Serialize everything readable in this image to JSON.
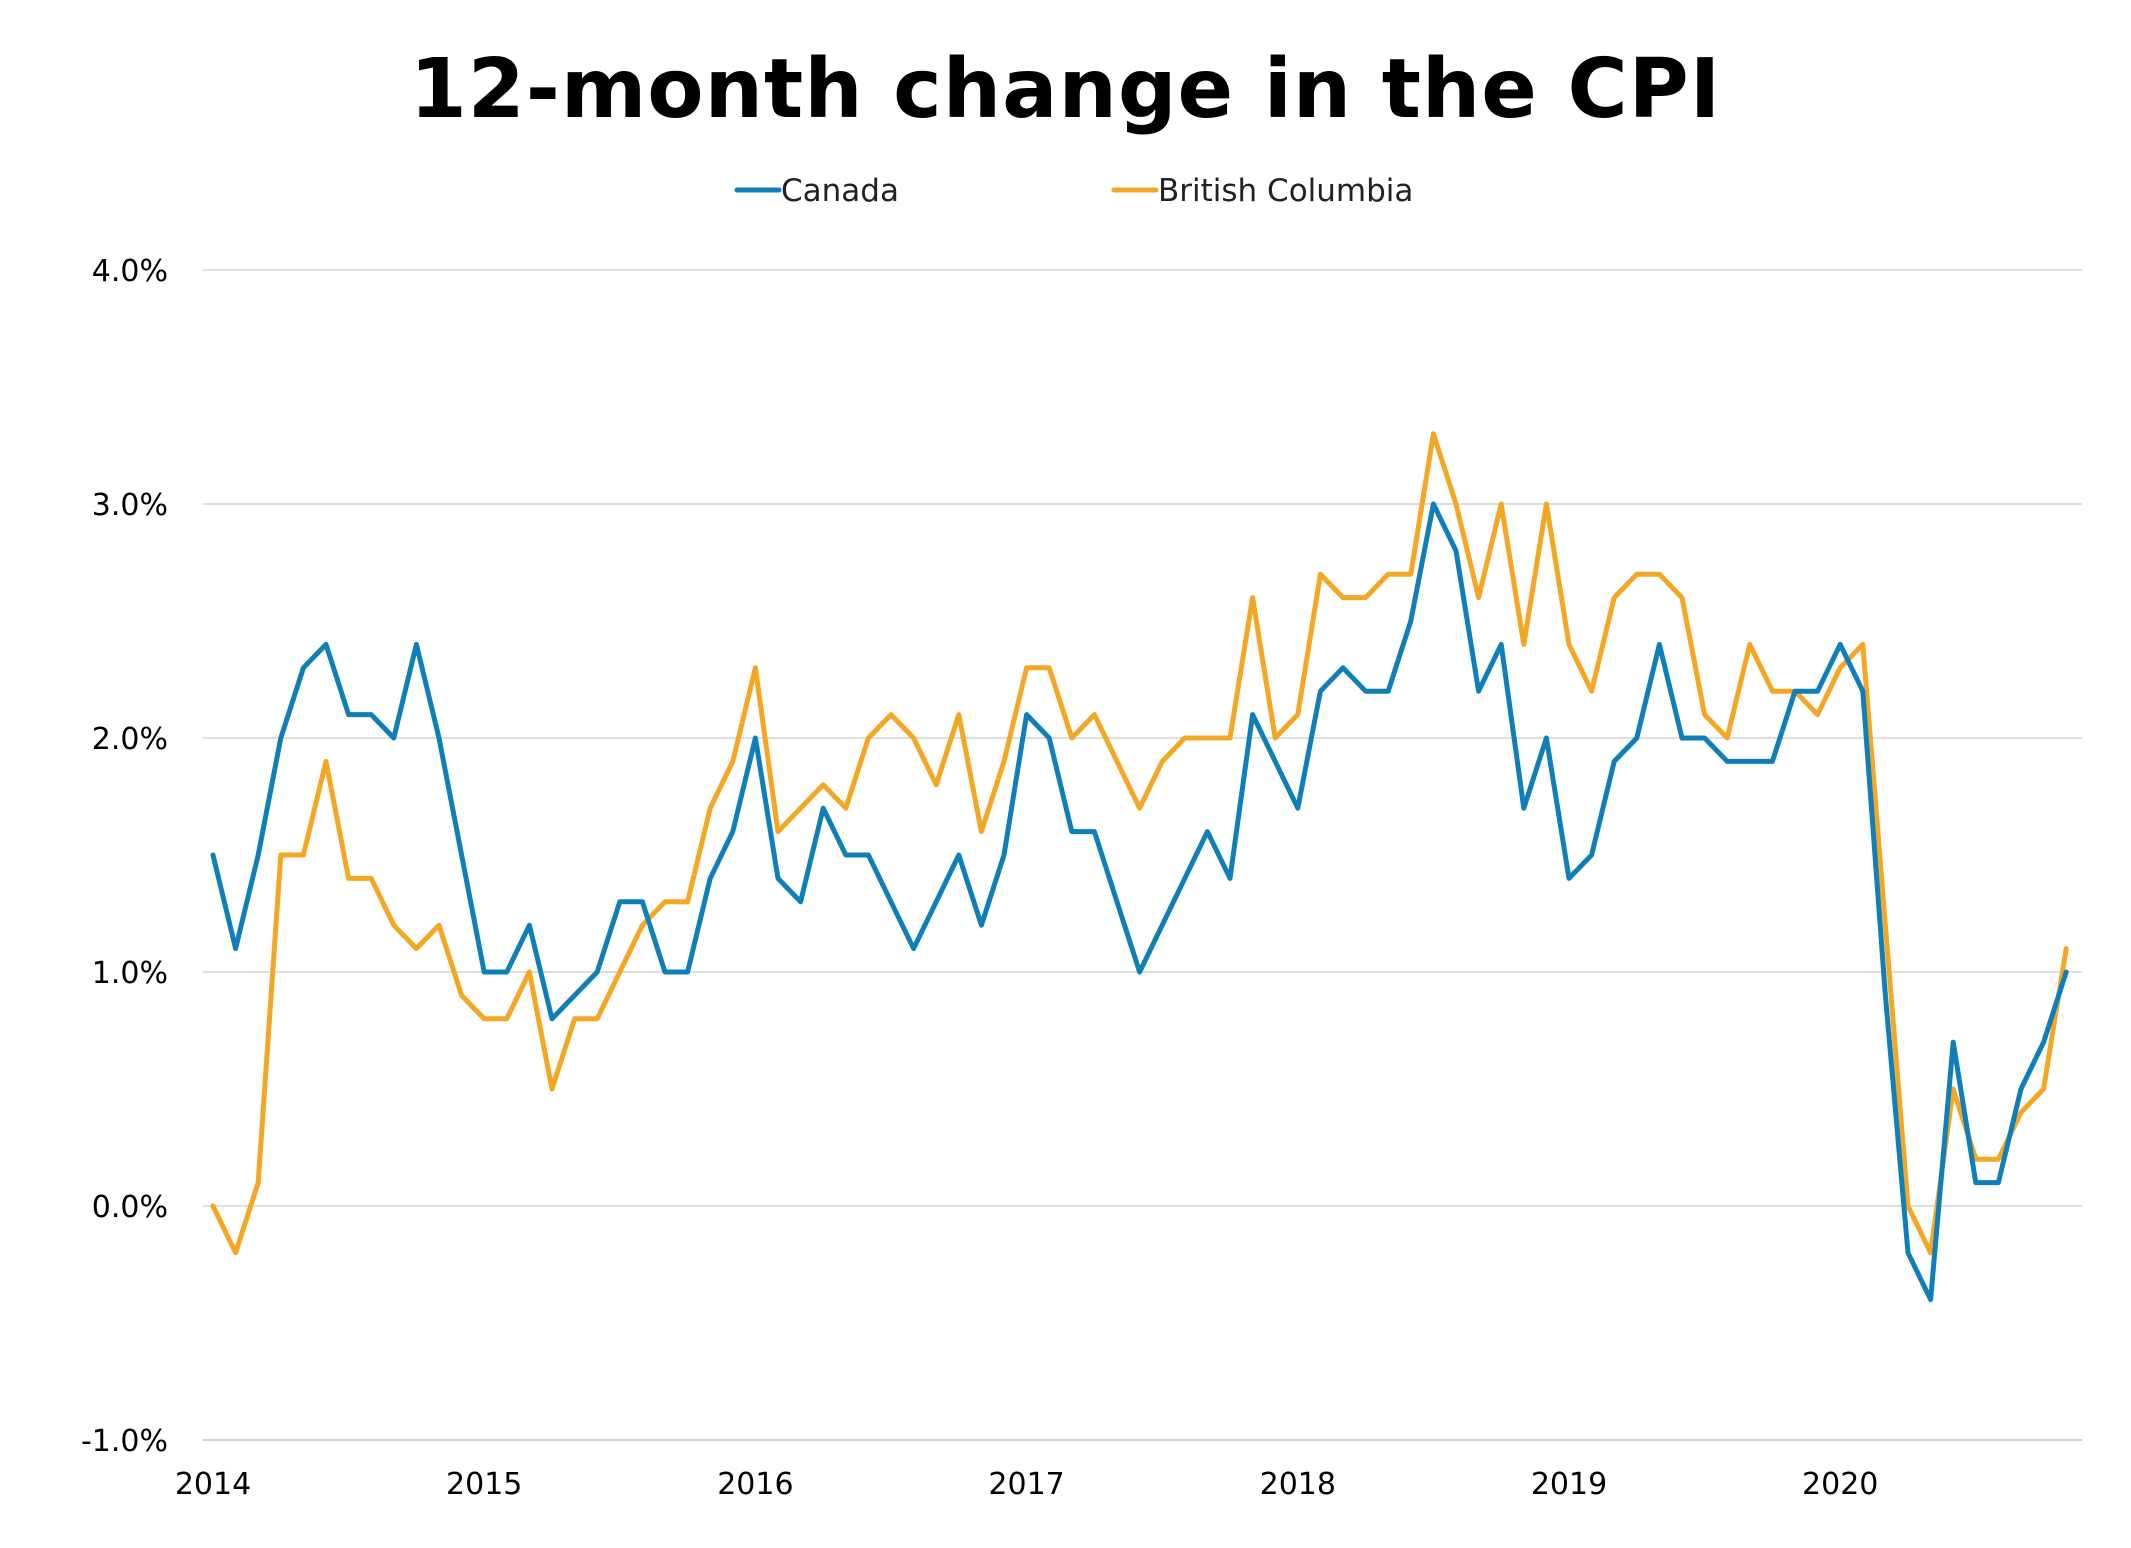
{
  "chart_data": {
    "type": "line",
    "title": "12-month change in the CPI",
    "xlabel": "",
    "ylabel": "",
    "ylim": [
      -1.0,
      4.0
    ],
    "yticks": [
      "4.0%",
      "3.0%",
      "2.0%",
      "1.0%",
      "0.0%",
      "-1.0%"
    ],
    "ytick_values": [
      4.0,
      3.0,
      2.0,
      1.0,
      0.0,
      -1.0
    ],
    "xticks": [
      "2014",
      "2015",
      "2016",
      "2017",
      "2018",
      "2019",
      "2020"
    ],
    "x_start": "2014-01",
    "x_end": "2020-10",
    "grid": "horizontal",
    "legend_position": "top-center",
    "series": [
      {
        "name": "Canada",
        "color": "#0e7fb8",
        "values": [
          1.5,
          1.1,
          1.5,
          2.0,
          2.3,
          2.4,
          2.1,
          2.1,
          2.0,
          2.4,
          2.0,
          1.5,
          1.0,
          1.0,
          1.2,
          0.8,
          0.9,
          1.0,
          1.3,
          1.3,
          1.0,
          1.0,
          1.4,
          1.6,
          2.0,
          1.4,
          1.3,
          1.7,
          1.5,
          1.5,
          1.3,
          1.1,
          1.3,
          1.5,
          1.2,
          1.5,
          2.1,
          2.0,
          1.6,
          1.6,
          1.3,
          1.0,
          1.2,
          1.4,
          1.6,
          1.4,
          2.1,
          1.9,
          1.7,
          2.2,
          2.3,
          2.2,
          2.2,
          2.5,
          3.0,
          2.8,
          2.2,
          2.4,
          1.7,
          2.0,
          1.4,
          1.5,
          1.9,
          2.0,
          2.4,
          2.0,
          2.0,
          1.9,
          1.9,
          1.9,
          2.2,
          2.2,
          2.4,
          2.2,
          0.9,
          -0.2,
          -0.4,
          0.7,
          0.1,
          0.1,
          0.5,
          0.7,
          1.0
        ]
      },
      {
        "name": "British Columbia",
        "color": "#f5a623",
        "values": [
          0.0,
          -0.2,
          0.1,
          1.5,
          1.5,
          1.9,
          1.4,
          1.4,
          1.2,
          1.1,
          1.2,
          0.9,
          0.8,
          0.8,
          1.0,
          0.5,
          0.8,
          0.8,
          1.0,
          1.2,
          1.3,
          1.3,
          1.7,
          1.9,
          2.3,
          1.6,
          1.7,
          1.8,
          1.7,
          2.0,
          2.1,
          2.0,
          1.8,
          2.1,
          1.6,
          1.9,
          2.3,
          2.3,
          2.0,
          2.1,
          1.9,
          1.7,
          1.9,
          2.0,
          2.0,
          2.0,
          2.6,
          2.0,
          2.1,
          2.7,
          2.6,
          2.6,
          2.7,
          2.7,
          3.3,
          3.0,
          2.6,
          3.0,
          2.4,
          3.0,
          2.4,
          2.2,
          2.6,
          2.7,
          2.7,
          2.6,
          2.1,
          2.0,
          2.4,
          2.2,
          2.2,
          2.1,
          2.3,
          2.4,
          1.2,
          0.0,
          -0.2,
          0.5,
          0.2,
          0.2,
          0.4,
          0.5,
          1.1
        ]
      }
    ]
  }
}
